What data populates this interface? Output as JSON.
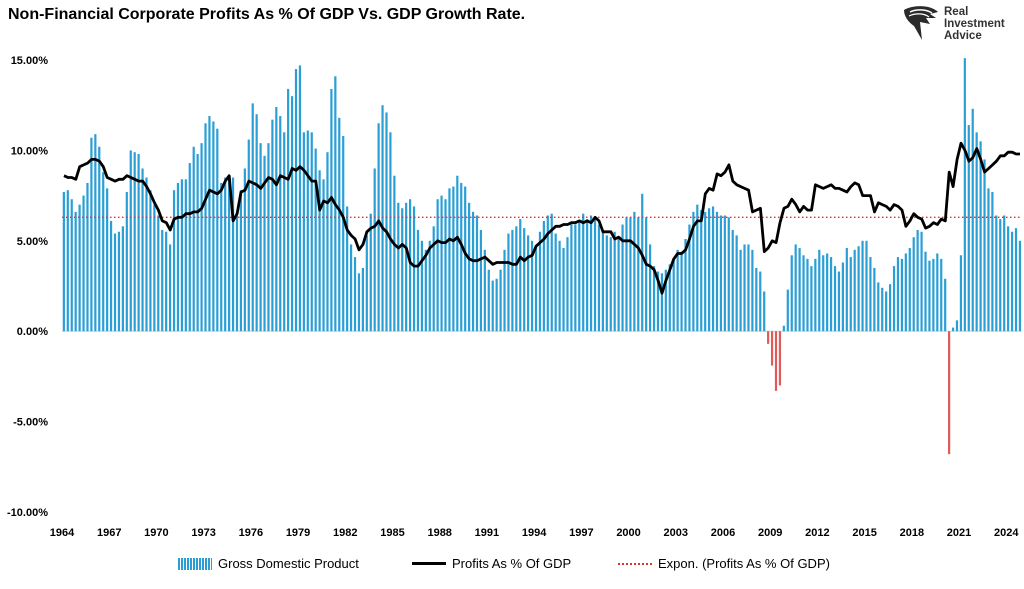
{
  "title": "Non-Financial Corporate Profits As % Of GDP Vs. GDP Growth Rate.",
  "logo": {
    "text": "Real\nInvestment\nAdvice",
    "icon": "eagle-head-icon"
  },
  "legend": {
    "gdp": "Gross Domestic Product",
    "profits": "Profits As % Of GDP",
    "trend": "Expon. (Profits As % Of GDP)"
  },
  "colors": {
    "gdp_pos": "#2a9fd6",
    "gdp_neg": "#e05a5a",
    "profits": "#000000",
    "trend": "#e03030"
  },
  "chart_data": {
    "type": "bar+line",
    "title": "Non-Financial Corporate Profits As % Of GDP Vs. GDP Growth Rate.",
    "x_start": 1964,
    "x_end": 2025,
    "ylim": [
      -10,
      15
    ],
    "yticks": [
      "15.00%",
      "10.00%",
      "5.00%",
      "0.00%",
      "-5.00%",
      "-10.00%"
    ],
    "xticks": [
      "1964",
      "1967",
      "1970",
      "1973",
      "1976",
      "1979",
      "1982",
      "1985",
      "1988",
      "1991",
      "1994",
      "1997",
      "2000",
      "2003",
      "2006",
      "2009",
      "2012",
      "2015",
      "2018",
      "2021",
      "2024"
    ],
    "trend_value": 6.3,
    "gdp_growth_yoy": {
      "years": [
        1964,
        1965,
        1966,
        1967,
        1968,
        1969,
        1970,
        1971,
        1972,
        1973,
        1974,
        1975,
        1976,
        1977,
        1978,
        1979,
        1980,
        1981,
        1982,
        1983,
        1984,
        1985,
        1986,
        1987,
        1988,
        1989,
        1990,
        1991,
        1992,
        1993,
        1994,
        1995,
        1996,
        1997,
        1998,
        1999,
        2000,
        2001,
        2002,
        2003,
        2004,
        2005,
        2006,
        2007,
        2008,
        2009,
        2010,
        2011,
        2012,
        2013,
        2014,
        2015,
        2016,
        2017,
        2018,
        2019,
        2020,
        2021,
        2022,
        2023,
        2024
      ],
      "quarters": [
        [
          7.7,
          7.8,
          7.3,
          6.6
        ],
        [
          7.0,
          7.5,
          8.2,
          10.7
        ],
        [
          10.9,
          10.2,
          8.8,
          7.9
        ],
        [
          6.1,
          5.4,
          5.5,
          5.8
        ],
        [
          7.7,
          10.0,
          9.9,
          9.8
        ],
        [
          9.0,
          8.5,
          7.8,
          7.0
        ],
        [
          6.4,
          5.6,
          5.5,
          4.8
        ],
        [
          7.8,
          8.2,
          8.4,
          8.4
        ],
        [
          9.3,
          10.2,
          9.8,
          10.4
        ],
        [
          11.5,
          11.9,
          11.6,
          11.2
        ],
        [
          8.2,
          8.5,
          8.4,
          8.5
        ],
        [
          6.4,
          7.8,
          9.0,
          10.6
        ],
        [
          12.6,
          12.0,
          10.4,
          9.7
        ],
        [
          10.4,
          11.7,
          12.4,
          11.9
        ],
        [
          11.0,
          13.4,
          13.0,
          14.5
        ],
        [
          14.7,
          11.0,
          11.1,
          11.0
        ],
        [
          10.1,
          8.9,
          8.4,
          9.9
        ],
        [
          13.4,
          14.1,
          11.8,
          10.8
        ],
        [
          6.9,
          4.8,
          4.1,
          3.2
        ],
        [
          3.5,
          5.3,
          6.5,
          9.0
        ],
        [
          11.5,
          12.5,
          12.1,
          11.0
        ],
        [
          8.6,
          7.1,
          6.8,
          7.1
        ],
        [
          7.3,
          6.9,
          5.6,
          5.0
        ],
        [
          4.5,
          5.0,
          5.8,
          7.3
        ],
        [
          7.5,
          7.3,
          7.9,
          8.0
        ],
        [
          8.6,
          8.2,
          8.0,
          7.1
        ],
        [
          6.6,
          6.4,
          5.6,
          4.5
        ],
        [
          3.4,
          2.8,
          2.9,
          3.4
        ],
        [
          4.5,
          5.4,
          5.6,
          5.8
        ],
        [
          6.2,
          5.7,
          5.3,
          5.0
        ],
        [
          4.7,
          5.5,
          6.1,
          6.4
        ],
        [
          6.5,
          5.4,
          5.0,
          4.6
        ],
        [
          5.2,
          5.9,
          5.9,
          6.1
        ],
        [
          6.5,
          6.2,
          6.4,
          6.2
        ],
        [
          5.9,
          5.5,
          5.3,
          5.2
        ],
        [
          5.5,
          5.2,
          5.9,
          6.3
        ],
        [
          6.3,
          6.6,
          6.3,
          7.6
        ],
        [
          6.3,
          4.8,
          3.6,
          3.3
        ],
        [
          3.2,
          3.4,
          3.7,
          4.0
        ],
        [
          4.5,
          4.4,
          5.1,
          5.9
        ],
        [
          6.6,
          7.0,
          6.7,
          6.6
        ],
        [
          6.8,
          6.9,
          6.6,
          6.4
        ],
        [
          6.4,
          6.3,
          5.6,
          5.3
        ],
        [
          4.5,
          4.8,
          4.8,
          4.5
        ],
        [
          3.5,
          3.3,
          2.2,
          -0.7
        ],
        [
          -1.9,
          -3.3,
          -3.0,
          0.3
        ],
        [
          2.3,
          4.2,
          4.8,
          4.6
        ],
        [
          4.2,
          4.0,
          3.6,
          4.0
        ],
        [
          4.5,
          4.2,
          4.3,
          4.1
        ],
        [
          3.6,
          3.3,
          3.8,
          4.6
        ],
        [
          4.1,
          4.5,
          4.7,
          5.0
        ],
        [
          5.0,
          4.1,
          3.5,
          2.7
        ],
        [
          2.4,
          2.2,
          2.6,
          3.6
        ],
        [
          4.1,
          4.0,
          4.3,
          4.6
        ],
        [
          5.2,
          5.6,
          5.5,
          4.4
        ],
        [
          3.9,
          4.0,
          4.3,
          4.0
        ],
        [
          2.9,
          -6.8,
          0.2,
          0.6
        ],
        [
          4.2,
          15.1,
          11.4,
          12.3
        ],
        [
          11.0,
          10.5,
          9.5,
          7.9
        ],
        [
          7.7,
          6.4,
          6.2,
          6.4
        ],
        [
          5.8,
          5.5,
          5.7,
          5.0
        ]
      ]
    },
    "profits_pct_gdp": {
      "years": [
        1964,
        1965,
        1966,
        1967,
        1968,
        1969,
        1970,
        1971,
        1972,
        1973,
        1974,
        1975,
        1976,
        1977,
        1978,
        1979,
        1980,
        1981,
        1982,
        1983,
        1984,
        1985,
        1986,
        1987,
        1988,
        1989,
        1990,
        1991,
        1992,
        1993,
        1994,
        1995,
        1996,
        1997,
        1998,
        1999,
        2000,
        2001,
        2002,
        2003,
        2004,
        2005,
        2006,
        2007,
        2008,
        2009,
        2010,
        2011,
        2012,
        2013,
        2014,
        2015,
        2016,
        2017,
        2018,
        2019,
        2020,
        2021,
        2022,
        2023,
        2024
      ],
      "quarters": [
        [
          8.6,
          8.5,
          8.5,
          8.4
        ],
        [
          9.1,
          9.2,
          9.3,
          9.5
        ],
        [
          9.5,
          9.4,
          9.1,
          8.5
        ],
        [
          8.4,
          8.3,
          8.4,
          8.4
        ],
        [
          8.6,
          8.5,
          8.4,
          8.3
        ],
        [
          8.3,
          8.0,
          7.6,
          7.1
        ],
        [
          6.7,
          6.1,
          6.0,
          5.6
        ],
        [
          6.2,
          6.3,
          6.3,
          6.5
        ],
        [
          6.5,
          6.6,
          6.6,
          6.8
        ],
        [
          7.3,
          7.8,
          7.7,
          7.6
        ],
        [
          7.8,
          8.3,
          8.6,
          6.1
        ],
        [
          6.5,
          7.7,
          7.8,
          8.3
        ],
        [
          8.2,
          8.1,
          7.9,
          8.2
        ],
        [
          8.5,
          8.4,
          8.1,
          8.6
        ],
        [
          8.5,
          8.4,
          9.0,
          8.9
        ],
        [
          9.1,
          8.9,
          8.6,
          8.3
        ],
        [
          8.3,
          6.7,
          7.2,
          7.1
        ],
        [
          7.4,
          7.0,
          6.7,
          6.3
        ],
        [
          5.6,
          5.3,
          5.1,
          4.5
        ],
        [
          4.8,
          5.5,
          5.7,
          5.8
        ],
        [
          6.1,
          5.7,
          5.5,
          5.1
        ],
        [
          4.8,
          4.6,
          4.8,
          4.6
        ],
        [
          3.8,
          3.6,
          3.6,
          3.9
        ],
        [
          4.2,
          4.6,
          4.8,
          5.0
        ],
        [
          4.9,
          4.9,
          5.1,
          5.0
        ],
        [
          5.2,
          4.8,
          4.3,
          4.0
        ],
        [
          3.9,
          3.9,
          4.0,
          4.1
        ],
        [
          3.9,
          3.7,
          3.8,
          3.8
        ],
        [
          3.8,
          3.8,
          3.7,
          3.7
        ],
        [
          4.1,
          3.9,
          4.1,
          4.2
        ],
        [
          4.7,
          4.9,
          5.1,
          5.4
        ],
        [
          5.6,
          5.8,
          5.8,
          5.9
        ],
        [
          5.9,
          6.0,
          6.0,
          6.1
        ],
        [
          6.0,
          6.1,
          6.0,
          6.3
        ],
        [
          6.1,
          5.5,
          5.5,
          5.5
        ],
        [
          5.1,
          5.2,
          5.0,
          5.0
        ],
        [
          5.0,
          4.8,
          4.6,
          4.2
        ],
        [
          3.7,
          3.6,
          3.4,
          2.8
        ],
        [
          2.1,
          2.8,
          3.4,
          4.0
        ],
        [
          4.3,
          4.3,
          4.5,
          5.1
        ],
        [
          5.8,
          6.1,
          6.1,
          7.6
        ],
        [
          7.9,
          7.8,
          8.7,
          8.6
        ],
        [
          8.8,
          9.2,
          8.3,
          8.1
        ],
        [
          8.0,
          7.9,
          7.8,
          6.6
        ],
        [
          6.7,
          6.8,
          4.4,
          4.6
        ],
        [
          5.0,
          4.9,
          6.0,
          6.8
        ],
        [
          6.9,
          7.3,
          7.0,
          6.6
        ],
        [
          6.9,
          6.7,
          6.7,
          8.1
        ],
        [
          8.0,
          7.9,
          8.0,
          8.1
        ],
        [
          7.9,
          7.9,
          7.8,
          7.7
        ],
        [
          8.0,
          8.2,
          8.1,
          7.5
        ],
        [
          7.5,
          7.5,
          6.6,
          7.1
        ],
        [
          7.0,
          6.9,
          6.7,
          7.0
        ],
        [
          6.9,
          6.7,
          5.8,
          6.1
        ],
        [
          6.5,
          6.3,
          6.2,
          5.7
        ],
        [
          5.8,
          6.0,
          5.9,
          6.2
        ],
        [
          6.1,
          8.8,
          8.0,
          9.5
        ],
        [
          10.4,
          10.0,
          9.4,
          9.6
        ],
        [
          10.1,
          9.5,
          8.8,
          9.0
        ],
        [
          9.2,
          9.4,
          9.7,
          9.7
        ],
        [
          9.9,
          9.9,
          9.8,
          9.8
        ]
      ]
    }
  }
}
